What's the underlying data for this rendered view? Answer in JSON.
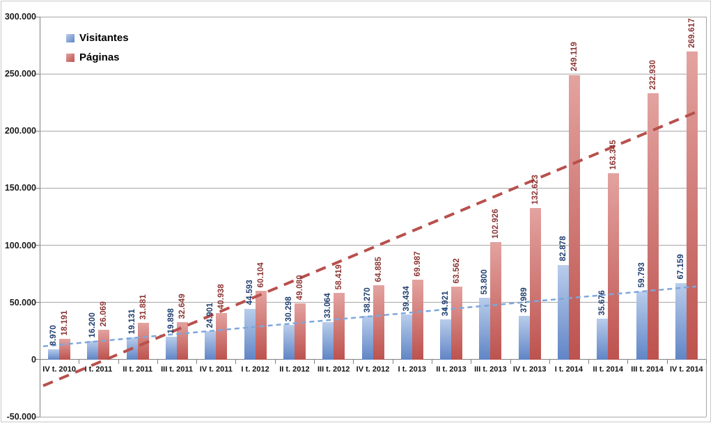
{
  "chart_data": {
    "type": "bar",
    "title": "",
    "categories": [
      "IV t. 2010",
      "I t. 2011",
      "II t. 2011",
      "III t. 2011",
      "IV t. 2011",
      "I t. 2012",
      "II t. 2012",
      "III t. 2012",
      "IV t. 2012",
      "I t. 2013",
      "II t. 2013",
      "III t. 2013",
      "IV t. 2013",
      "I t. 2014",
      "II t. 2014",
      "III t. 2014",
      "IV t. 2014"
    ],
    "series": [
      {
        "name": "Visitantes",
        "values": [
          8970,
          16200,
          19131,
          19898,
          24901,
          44593,
          30298,
          33064,
          38270,
          39434,
          34921,
          53800,
          37989,
          82878,
          35676,
          59793,
          67159
        ],
        "bar_color_top": "#b9cdeb",
        "bar_color_bottom": "#6085c6",
        "label_color": "#1e3c6e",
        "trendline_color": "#7da7dc",
        "trendline_style": "dashed"
      },
      {
        "name": "Páginas",
        "values": [
          18191,
          26069,
          31881,
          32649,
          40938,
          60104,
          49080,
          58419,
          64885,
          69987,
          63562,
          102926,
          132623,
          249119,
          163345,
          232930,
          269617
        ],
        "bar_color_top": "#e3a3a0",
        "bar_color_bottom": "#bd524e",
        "label_color": "#8b3432",
        "trendline_color": "#b8504c",
        "trendline_style": "dashed"
      }
    ],
    "value_labels": {
      "Visitantes": [
        "8.970",
        "16.200",
        "19.131",
        "19.898",
        "24.901",
        "44.593",
        "30.298",
        "33.064",
        "38.270",
        "39.434",
        "34.921",
        "53.800",
        "37.989",
        "82.878",
        "35.676",
        "59.793",
        "67.159"
      ],
      "Páginas": [
        "18.191",
        "26.069",
        "31.881",
        "32.649",
        "40.938",
        "60.104",
        "49.080",
        "58.419",
        "64.885",
        "69.987",
        "63.562",
        "102.926",
        "132.623",
        "249.119",
        "163.345",
        "232.930",
        "269.617"
      ]
    },
    "ylim": [
      -50000,
      300000
    ],
    "y_tick_step": 50000,
    "y_tick_values": [
      300000,
      250000,
      200000,
      150000,
      100000,
      50000,
      0,
      -50000
    ],
    "y_tick_labels": [
      "300.000",
      "250.000",
      "200.000",
      "150.000",
      "100.000",
      "50.000",
      "0",
      "-50.000"
    ],
    "thousands_separator": ".",
    "grid": true,
    "legend_position": "top-left",
    "trendlines": "linear per series, dashed"
  }
}
